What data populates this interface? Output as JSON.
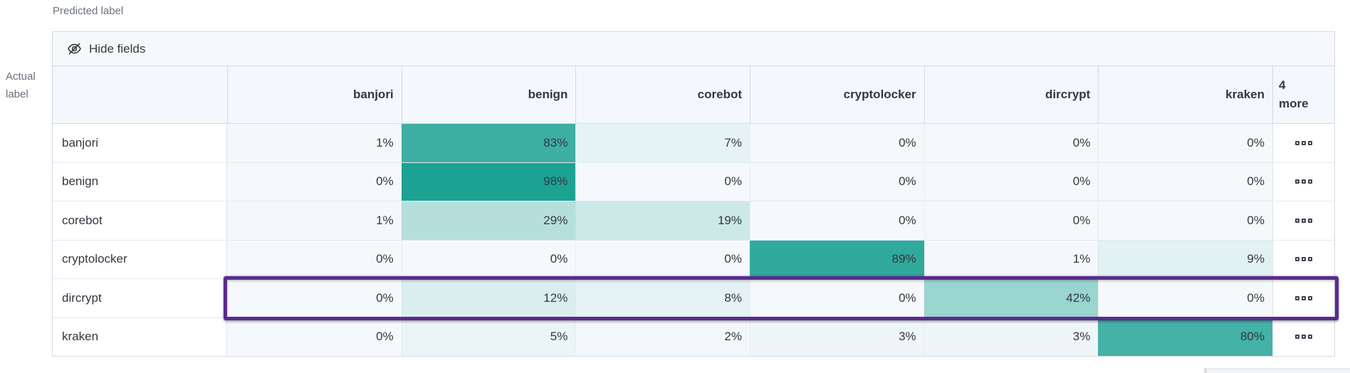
{
  "axes": {
    "predicted_label": "Predicted label",
    "actual_label": "Actual label"
  },
  "toolbar": {
    "hide_fields_label": "Hide fields",
    "hide_fields_icon": "eye-closed-icon"
  },
  "grid": {
    "columns": [
      "banjori",
      "benign",
      "corebot",
      "cryptolocker",
      "dircrypt",
      "kraken"
    ],
    "more_column": {
      "count": "4",
      "label": "more"
    },
    "value_suffix": "%",
    "row_actions_icon": "boxes-horizontal-icon",
    "rows": [
      {
        "label": "banjori",
        "values": [
          1,
          83,
          7,
          0,
          0,
          0
        ],
        "highlighted": false
      },
      {
        "label": "benign",
        "values": [
          0,
          98,
          0,
          0,
          0,
          0
        ],
        "highlighted": false
      },
      {
        "label": "corebot",
        "values": [
          1,
          29,
          19,
          0,
          0,
          0
        ],
        "highlighted": false
      },
      {
        "label": "cryptolocker",
        "values": [
          0,
          0,
          0,
          89,
          1,
          9
        ],
        "highlighted": false
      },
      {
        "label": "dircrypt",
        "values": [
          0,
          12,
          8,
          0,
          42,
          0
        ],
        "highlighted": true
      },
      {
        "label": "kraken",
        "values": [
          0,
          5,
          2,
          3,
          3,
          80
        ],
        "highlighted": false
      }
    ]
  },
  "colors": {
    "heat_min": "#F6F9FB",
    "heat_max": "#18A091",
    "highlight_outline": "#5A2B8F"
  },
  "chart_data": {
    "type": "heatmap",
    "xlabel": "Predicted label",
    "ylabel": "Actual label",
    "x_categories": [
      "banjori",
      "benign",
      "corebot",
      "cryptolocker",
      "dircrypt",
      "kraken"
    ],
    "y_categories": [
      "banjori",
      "benign",
      "corebot",
      "cryptolocker",
      "dircrypt",
      "kraken"
    ],
    "values": [
      [
        1,
        83,
        7,
        0,
        0,
        0
      ],
      [
        0,
        98,
        0,
        0,
        0,
        0
      ],
      [
        1,
        29,
        19,
        0,
        0,
        0
      ],
      [
        0,
        0,
        0,
        89,
        1,
        9
      ],
      [
        0,
        12,
        8,
        0,
        42,
        0
      ],
      [
        0,
        5,
        2,
        3,
        3,
        80
      ]
    ],
    "unit": "%",
    "hidden_columns_note": "4 more"
  }
}
